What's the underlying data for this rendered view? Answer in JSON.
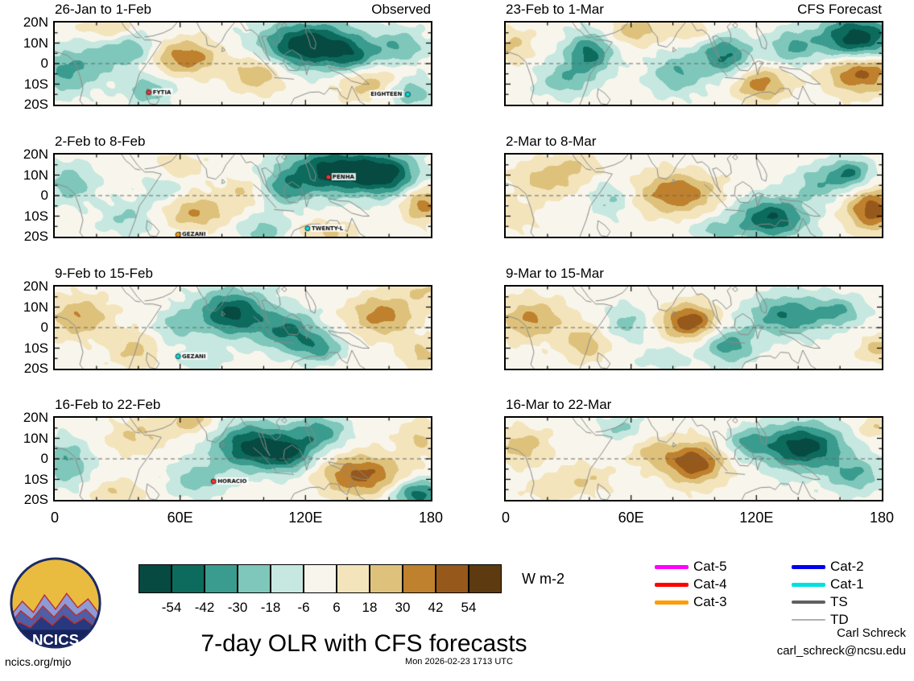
{
  "meta": {
    "title": "7-day OLR with CFS forecasts",
    "logo_text": "NCICS",
    "credit_name": "Carl Schreck",
    "credit_email": "carl_schreck@ncsu.edu",
    "footer_left": "ncics.org/mjo",
    "footer_center": "Mon 2026-02-23 1713 UTC"
  },
  "legend": {
    "items": [
      {
        "label": "Cat-5",
        "color": "#ff00ff",
        "thickness": 5
      },
      {
        "label": "Cat-4",
        "color": "#ff0000",
        "thickness": 5
      },
      {
        "label": "Cat-3",
        "color": "#ff9c00",
        "thickness": 5
      },
      {
        "label": "Cat-2",
        "color": "#0000ee",
        "thickness": 5
      },
      {
        "label": "Cat-1",
        "color": "#00e0e0",
        "thickness": 5
      },
      {
        "label": "TS",
        "color": "#606060",
        "thickness": 4
      },
      {
        "label": "TD",
        "color": "#b0b0b0",
        "thickness": 2
      }
    ]
  },
  "chart_data": {
    "type": "heatmap",
    "title": "7-day OLR with CFS forecasts",
    "units": "W m-2",
    "columns": [
      {
        "header_right": "Observed"
      },
      {
        "header_right": "CFS Forecast"
      }
    ],
    "x_axis": {
      "ticks": [
        "0",
        "60E",
        "120E",
        "180"
      ],
      "tick_lons": [
        0,
        60,
        120,
        180
      ],
      "range": [
        0,
        180
      ]
    },
    "y_axis": {
      "ticks": [
        "20N",
        "10N",
        "0",
        "10S",
        "20S"
      ],
      "tick_lats": [
        20,
        10,
        0,
        -10,
        -20
      ],
      "range": [
        -20,
        20
      ]
    },
    "colorbar": {
      "label": "W m-2",
      "levels": [
        -54,
        -42,
        -30,
        -18,
        -6,
        6,
        18,
        30,
        42,
        54
      ],
      "colors": [
        "#064a41",
        "#0c6b5d",
        "#3a9c8e",
        "#7fc7ba",
        "#c6e8e0",
        "#f8f6ec",
        "#f3e4bc",
        "#dec27c",
        "#bf812d",
        "#96591b",
        "#5e3a10"
      ]
    },
    "panels": [
      {
        "col": 0,
        "row": 0,
        "title": "26-Jan to 1-Feb",
        "corner": "Observed",
        "storms": [
          {
            "name": "FYTIA",
            "lon": 45,
            "lat": -14,
            "color": "#ff3030"
          },
          {
            "name": "EIGHTEEN",
            "lon": 169,
            "lat": -15,
            "color": "#00e0e0"
          }
        ],
        "blobs": [
          [
            5,
            -4,
            -32,
            9,
            8
          ],
          [
            22,
            3,
            -20,
            8,
            8
          ],
          [
            38,
            7,
            -26,
            7,
            6
          ],
          [
            45,
            -13,
            -28,
            8,
            5
          ],
          [
            63,
            3,
            38,
            11,
            6
          ],
          [
            97,
            -5,
            32,
            9,
            6
          ],
          [
            122,
            9,
            -68,
            16,
            8
          ],
          [
            143,
            3,
            -30,
            8,
            6
          ],
          [
            150,
            -9,
            26,
            11,
            6
          ],
          [
            165,
            8,
            -28,
            9,
            6
          ],
          [
            170,
            -14,
            -30,
            8,
            5
          ],
          [
            25,
            17,
            22,
            9,
            4
          ]
        ]
      },
      {
        "col": 0,
        "row": 1,
        "title": "2-Feb to 8-Feb",
        "corner": "",
        "storms": [
          {
            "name": "PENHA",
            "lon": 131,
            "lat": 9,
            "color": "#ff3030"
          },
          {
            "name": "GEZANI",
            "lon": 59,
            "lat": -19,
            "color": "#ff9c00"
          },
          {
            "name": "TWENTY-L",
            "lon": 121,
            "lat": -16,
            "color": "#00e0e0"
          }
        ],
        "blobs": [
          [
            8,
            6,
            -26,
            8,
            7
          ],
          [
            35,
            -11,
            -20,
            9,
            6
          ],
          [
            68,
            -8,
            30,
            11,
            6
          ],
          [
            52,
            3,
            -18,
            7,
            5
          ],
          [
            90,
            2,
            18,
            7,
            5
          ],
          [
            110,
            3,
            -28,
            8,
            6
          ],
          [
            135,
            12,
            -65,
            17,
            8
          ],
          [
            160,
            10,
            -45,
            10,
            7
          ],
          [
            176,
            -4,
            36,
            7,
            6
          ],
          [
            100,
            -17,
            -24,
            9,
            5
          ],
          [
            130,
            -18,
            20,
            10,
            4
          ],
          [
            60,
            14,
            15,
            8,
            5
          ]
        ]
      },
      {
        "col": 0,
        "row": 2,
        "title": "9-Feb to 15-Feb",
        "corner": "",
        "storms": [
          {
            "name": "GEZANI",
            "lon": 59,
            "lat": -14,
            "color": "#00e0e0"
          }
        ],
        "blobs": [
          [
            12,
            5,
            30,
            10,
            7
          ],
          [
            38,
            -11,
            22,
            8,
            6
          ],
          [
            58,
            1,
            -20,
            7,
            6
          ],
          [
            85,
            7,
            -58,
            12,
            8
          ],
          [
            112,
            -2,
            -42,
            10,
            7
          ],
          [
            127,
            -10,
            -32,
            8,
            5
          ],
          [
            157,
            6,
            36,
            11,
            7
          ],
          [
            175,
            -13,
            22,
            7,
            5
          ],
          [
            176,
            18,
            18,
            7,
            4
          ],
          [
            70,
            -15,
            -15,
            8,
            4
          ]
        ]
      },
      {
        "col": 0,
        "row": 3,
        "title": "16-Feb to 22-Feb",
        "corner": "",
        "storms": [
          {
            "name": "HORACIO",
            "lon": 76,
            "lat": -11,
            "color": "#ff3030"
          }
        ],
        "blobs": [
          [
            6,
            -2,
            -30,
            8,
            8
          ],
          [
            40,
            11,
            20,
            10,
            6
          ],
          [
            65,
            18,
            26,
            8,
            4
          ],
          [
            68,
            -10,
            -26,
            9,
            6
          ],
          [
            95,
            6,
            -60,
            13,
            8
          ],
          [
            113,
            2,
            -38,
            8,
            6
          ],
          [
            127,
            13,
            -36,
            9,
            6
          ],
          [
            147,
            -8,
            46,
            14,
            7
          ],
          [
            174,
            -17,
            -50,
            9,
            5
          ],
          [
            175,
            10,
            20,
            7,
            6
          ],
          [
            30,
            -16,
            18,
            9,
            4
          ]
        ]
      },
      {
        "col": 1,
        "row": 0,
        "title": "23-Feb to 1-Mar",
        "corner": "CFS Forecast",
        "storms": [],
        "blobs": [
          [
            3,
            9,
            20,
            7,
            6
          ],
          [
            28,
            -8,
            -26,
            9,
            6
          ],
          [
            40,
            5,
            -46,
            8,
            7
          ],
          [
            62,
            16,
            26,
            9,
            5
          ],
          [
            82,
            -5,
            -30,
            9,
            7
          ],
          [
            105,
            4,
            -44,
            9,
            7
          ],
          [
            122,
            -10,
            36,
            9,
            6
          ],
          [
            137,
            8,
            -30,
            8,
            6
          ],
          [
            168,
            12,
            -65,
            13,
            8
          ],
          [
            170,
            -4,
            50,
            12,
            7
          ],
          [
            90,
            16,
            18,
            8,
            4
          ]
        ]
      },
      {
        "col": 1,
        "row": 1,
        "title": "2-Mar to 8-Mar",
        "corner": "",
        "storms": [],
        "blobs": [
          [
            5,
            -10,
            16,
            7,
            5
          ],
          [
            20,
            8,
            26,
            11,
            6
          ],
          [
            50,
            -2,
            -20,
            7,
            6
          ],
          [
            82,
            1,
            42,
            13,
            7
          ],
          [
            100,
            -17,
            -22,
            8,
            4
          ],
          [
            127,
            -11,
            -55,
            12,
            7
          ],
          [
            150,
            6,
            -26,
            9,
            6
          ],
          [
            165,
            11,
            -40,
            7,
            5
          ],
          [
            176,
            -7,
            50,
            9,
            7
          ],
          [
            35,
            15,
            15,
            8,
            4
          ]
        ]
      },
      {
        "col": 1,
        "row": 2,
        "title": "9-Mar to 15-Mar",
        "corner": "",
        "storms": [],
        "blobs": [
          [
            12,
            4,
            32,
            11,
            7
          ],
          [
            38,
            -8,
            26,
            8,
            6
          ],
          [
            58,
            2,
            -22,
            7,
            6
          ],
          [
            88,
            3,
            52,
            9,
            6
          ],
          [
            107,
            -9,
            -36,
            9,
            6
          ],
          [
            135,
            6,
            -42,
            13,
            7
          ],
          [
            160,
            8,
            -28,
            8,
            5
          ],
          [
            178,
            -10,
            22,
            6,
            5
          ],
          [
            75,
            -15,
            -15,
            8,
            4
          ]
        ]
      },
      {
        "col": 1,
        "row": 3,
        "title": "16-Mar to 22-Mar",
        "corner": "",
        "storms": [],
        "blobs": [
          [
            8,
            6,
            26,
            9,
            6
          ],
          [
            38,
            -10,
            18,
            9,
            5
          ],
          [
            55,
            15,
            -20,
            7,
            4
          ],
          [
            70,
            3,
            20,
            7,
            5
          ],
          [
            90,
            -2,
            52,
            10,
            7
          ],
          [
            115,
            8,
            -26,
            7,
            5
          ],
          [
            142,
            6,
            -62,
            14,
            8
          ],
          [
            167,
            -8,
            -30,
            9,
            6
          ],
          [
            176,
            15,
            18,
            6,
            4
          ],
          [
            20,
            -15,
            14,
            8,
            4
          ]
        ]
      }
    ],
    "coastlines": [
      [
        [
          0,
          6
        ],
        [
          6,
          4
        ],
        [
          9.5,
          1
        ],
        [
          12,
          -6
        ],
        [
          13.5,
          -12
        ],
        [
          12,
          -18
        ],
        [
          13.5,
          -20
        ]
      ],
      [
        [
          36,
          20
        ],
        [
          39.5,
          15
        ],
        [
          43,
          11.5
        ],
        [
          47,
          11.5
        ],
        [
          51,
          10.5
        ],
        [
          45.5,
          2
        ],
        [
          40.5,
          -5
        ],
        [
          38.5,
          -12
        ],
        [
          35.5,
          -20
        ]
      ],
      [
        [
          32,
          20
        ],
        [
          34,
          17
        ],
        [
          36,
          15.5
        ],
        [
          38.5,
          13
        ],
        [
          41,
          12.5
        ]
      ],
      [
        [
          43,
          13
        ],
        [
          47,
          13.5
        ],
        [
          52,
          15
        ],
        [
          56,
          17
        ],
        [
          58.5,
          20
        ]
      ],
      [
        [
          68,
          20
        ],
        [
          70,
          16
        ],
        [
          72.5,
          13
        ],
        [
          73,
          9
        ],
        [
          77,
          8
        ],
        [
          80,
          11
        ],
        [
          82,
          15
        ],
        [
          86,
          20
        ]
      ],
      [
        [
          80.2,
          8
        ],
        [
          81.5,
          6.5
        ],
        [
          80,
          5.8
        ],
        [
          80.2,
          8
        ]
      ],
      [
        [
          89,
          20
        ],
        [
          91.5,
          16
        ],
        [
          94,
          16.5
        ],
        [
          97,
          14
        ],
        [
          98.5,
          10
        ],
        [
          100,
          6
        ],
        [
          103,
          1.5
        ],
        [
          101.5,
          4.5
        ],
        [
          100.5,
          9
        ],
        [
          99,
          13
        ],
        [
          101,
          13.5
        ],
        [
          104,
          11
        ],
        [
          105.5,
          9
        ],
        [
          108,
          11
        ],
        [
          107.5,
          15
        ],
        [
          106,
          18
        ],
        [
          108,
          20
        ]
      ],
      [
        [
          95,
          5.5
        ],
        [
          99,
          2
        ],
        [
          103,
          -2.5
        ],
        [
          106,
          -6
        ]
      ],
      [
        [
          105,
          -6.8
        ],
        [
          110,
          -7.2
        ],
        [
          114.5,
          -7.6
        ]
      ],
      [
        [
          109.5,
          0.5
        ],
        [
          110,
          4.5
        ],
        [
          113.5,
          6.8
        ],
        [
          117.5,
          4
        ],
        [
          119,
          0.5
        ],
        [
          116,
          -3.5
        ],
        [
          112,
          -3.2
        ],
        [
          109.5,
          0.5
        ]
      ],
      [
        [
          119.5,
          0.5
        ],
        [
          121,
          1.3
        ],
        [
          123.5,
          0.5
        ],
        [
          121.5,
          -2
        ],
        [
          120.5,
          -5.5
        ],
        [
          119.5,
          0.5
        ]
      ],
      [
        [
          131,
          -1.5
        ],
        [
          136,
          -2.5
        ],
        [
          141,
          -2.8
        ],
        [
          146,
          -6
        ],
        [
          150.5,
          -10
        ],
        [
          147.5,
          -10
        ],
        [
          142,
          -8.5
        ],
        [
          137,
          -5
        ],
        [
          132,
          -3
        ],
        [
          131,
          -1.5
        ]
      ],
      [
        [
          113,
          -20
        ],
        [
          114.5,
          -17
        ],
        [
          118,
          -15.5
        ],
        [
          122,
          -14
        ],
        [
          126.5,
          -13.8
        ],
        [
          129,
          -15
        ],
        [
          131.5,
          -12
        ],
        [
          135.5,
          -12.3
        ],
        [
          137,
          -15.5
        ],
        [
          140,
          -17.5
        ],
        [
          142.2,
          -11
        ],
        [
          144,
          -14.5
        ],
        [
          146,
          -18.5
        ],
        [
          148.5,
          -20
        ]
      ],
      [
        [
          120,
          18.5
        ],
        [
          121.8,
          16
        ],
        [
          123.8,
          13
        ],
        [
          125,
          10
        ],
        [
          124.5,
          7
        ],
        [
          122.5,
          8
        ],
        [
          121.5,
          12
        ],
        [
          120.3,
          15
        ],
        [
          120,
          18.5
        ]
      ],
      [
        [
          44.2,
          -12.2
        ],
        [
          47.5,
          -14.5
        ],
        [
          50,
          -17.5
        ],
        [
          48.5,
          -20
        ],
        [
          45.5,
          -19.5
        ],
        [
          43.8,
          -16
        ],
        [
          44.2,
          -12.2
        ]
      ],
      [
        [
          110,
          20
        ],
        [
          111,
          18.5
        ],
        [
          110,
          17.5
        ],
        [
          108.5,
          18.8
        ],
        [
          110,
          20
        ]
      ]
    ]
  }
}
